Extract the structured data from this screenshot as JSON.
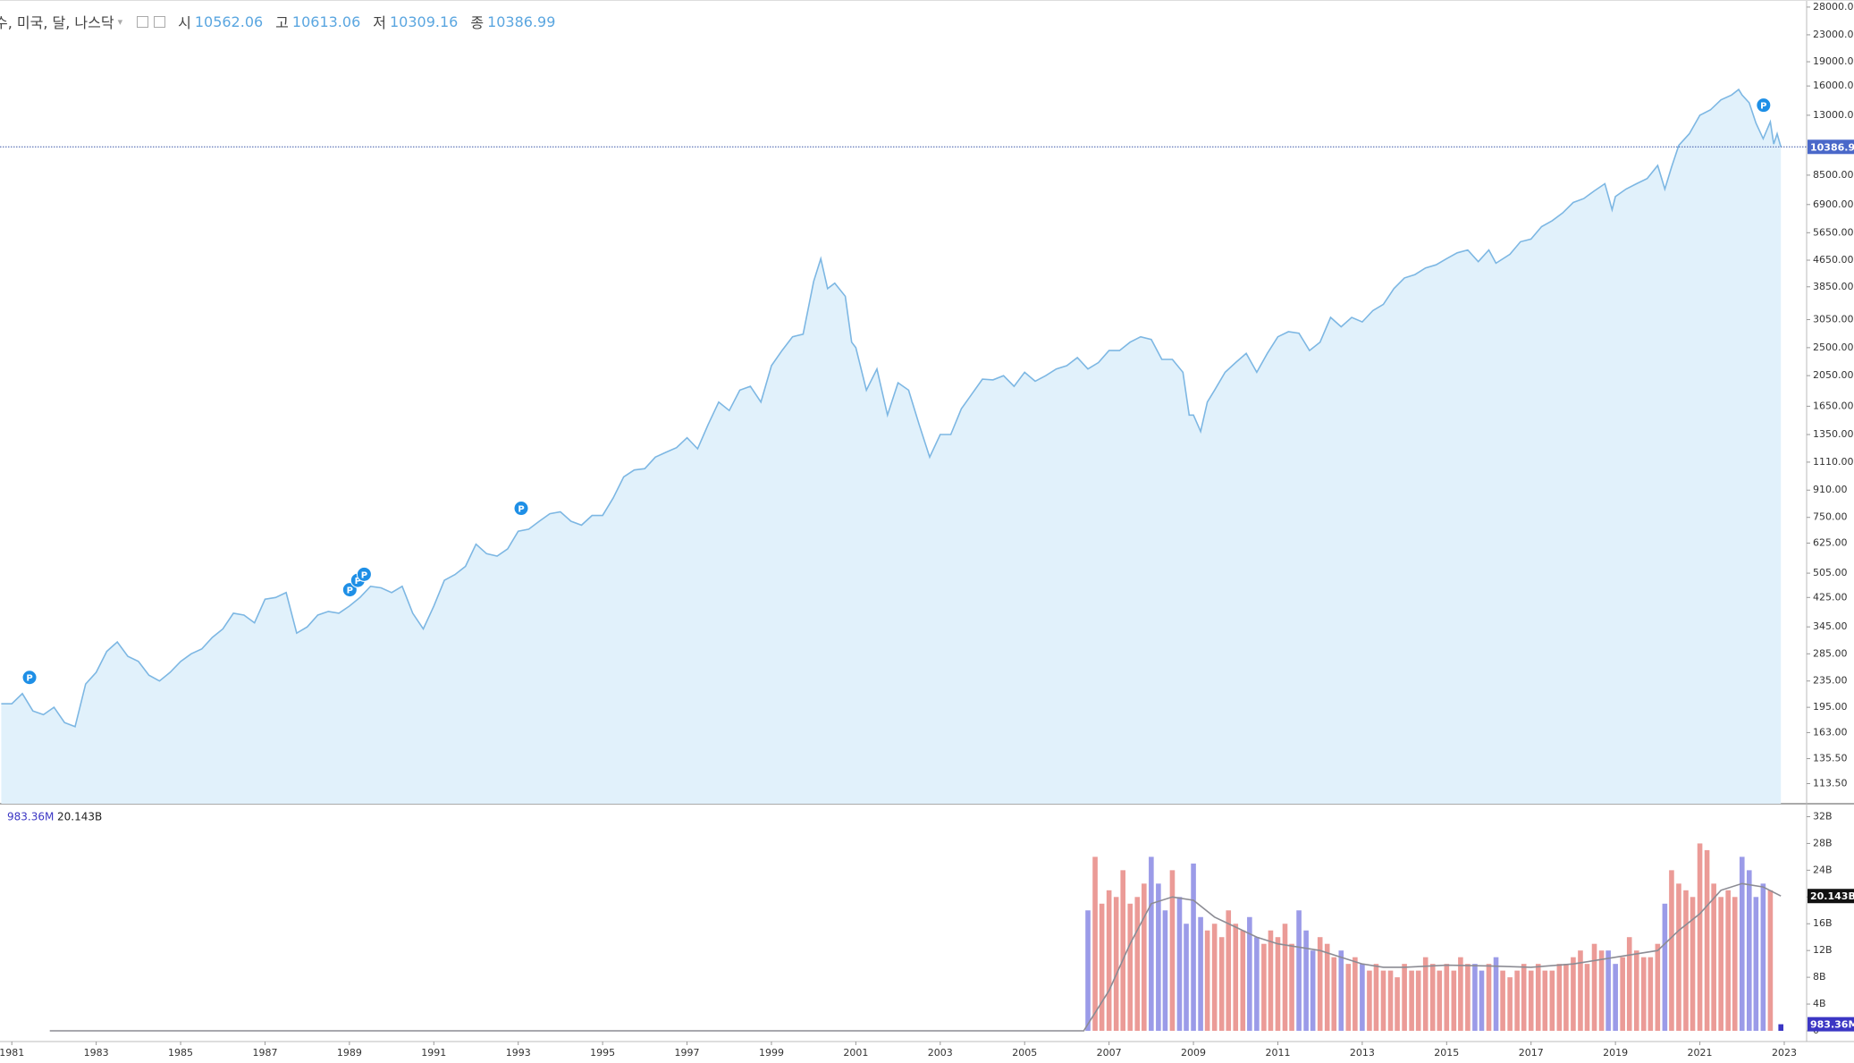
{
  "chart_data": [
    {
      "type": "area",
      "title": "수, 미국, 달, 나스닥",
      "ohlc": [
        {
          "label": "시",
          "value": 10562.06
        },
        {
          "label": "고",
          "value": 10613.06
        },
        {
          "label": "저",
          "value": 10309.16
        },
        {
          "label": "종",
          "value": 10386.99
        }
      ],
      "color": "#7db7e3",
      "fill": "#e1f1fb",
      "last_color": "#4a68c9",
      "log_scale": true,
      "x": [
        1980.75,
        1981,
        1981.25,
        1981.5,
        1981.75,
        1982,
        1982.25,
        1982.5,
        1982.75,
        1983,
        1983.25,
        1983.5,
        1983.75,
        1984,
        1984.25,
        1984.5,
        1984.75,
        1985,
        1985.25,
        1985.5,
        1985.75,
        1986,
        1986.25,
        1986.5,
        1986.75,
        1987,
        1987.25,
        1987.5,
        1987.75,
        1988,
        1988.25,
        1988.5,
        1988.75,
        1989,
        1989.25,
        1989.5,
        1989.75,
        1990,
        1990.25,
        1990.5,
        1990.75,
        1991,
        1991.25,
        1991.5,
        1991.75,
        1992,
        1992.25,
        1992.5,
        1992.75,
        1993,
        1993.25,
        1993.5,
        1993.75,
        1994,
        1994.25,
        1994.5,
        1994.75,
        1995,
        1995.25,
        1995.5,
        1995.75,
        1996,
        1996.25,
        1996.5,
        1996.75,
        1997,
        1997.25,
        1997.5,
        1997.75,
        1998,
        1998.25,
        1998.5,
        1998.75,
        1999,
        1999.25,
        1999.5,
        1999.75,
        2000,
        2000.17,
        2000.33,
        2000.5,
        2000.75,
        2000.9,
        2001,
        2001.25,
        2001.5,
        2001.75,
        2002,
        2002.25,
        2002.5,
        2002.75,
        2003,
        2003.25,
        2003.5,
        2003.75,
        2004,
        2004.25,
        2004.5,
        2004.75,
        2005,
        2005.25,
        2005.5,
        2005.75,
        2006,
        2006.25,
        2006.5,
        2006.75,
        2007,
        2007.25,
        2007.5,
        2007.75,
        2008,
        2008.25,
        2008.5,
        2008.75,
        2008.9,
        2009,
        2009.17,
        2009.33,
        2009.5,
        2009.75,
        2010,
        2010.25,
        2010.5,
        2010.75,
        2011,
        2011.25,
        2011.5,
        2011.75,
        2012,
        2012.25,
        2012.5,
        2012.75,
        2013,
        2013.25,
        2013.5,
        2013.75,
        2014,
        2014.25,
        2014.5,
        2014.75,
        2015,
        2015.25,
        2015.5,
        2015.75,
        2016,
        2016.17,
        2016.5,
        2016.75,
        2017,
        2017.25,
        2017.5,
        2017.75,
        2018,
        2018.25,
        2018.5,
        2018.75,
        2018.92,
        2019,
        2019.25,
        2019.5,
        2019.75,
        2020,
        2020.17,
        2020.33,
        2020.5,
        2020.75,
        2021,
        2021.25,
        2021.5,
        2021.75,
        2021.92,
        2022,
        2022.17,
        2022.33,
        2022.5,
        2022.67,
        2022.75,
        2022.83,
        2022.92
      ],
      "values": [
        200,
        200,
        215,
        190,
        185,
        195,
        175,
        170,
        230,
        250,
        290,
        310,
        280,
        270,
        245,
        235,
        250,
        270,
        285,
        295,
        320,
        340,
        380,
        375,
        355,
        420,
        425,
        440,
        330,
        345,
        375,
        385,
        380,
        400,
        425,
        460,
        455,
        440,
        460,
        380,
        340,
        400,
        480,
        500,
        530,
        620,
        580,
        570,
        600,
        680,
        690,
        730,
        770,
        780,
        730,
        710,
        760,
        760,
        860,
        1000,
        1050,
        1060,
        1150,
        1190,
        1230,
        1320,
        1220,
        1450,
        1700,
        1600,
        1850,
        1900,
        1700,
        2200,
        2450,
        2700,
        2750,
        4000,
        4700,
        3800,
        3950,
        3600,
        2600,
        2500,
        1850,
        2150,
        1550,
        1950,
        1850,
        1450,
        1150,
        1350,
        1350,
        1620,
        1800,
        2000,
        1990,
        2050,
        1900,
        2100,
        1970,
        2050,
        2150,
        2200,
        2330,
        2150,
        2250,
        2450,
        2450,
        2600,
        2700,
        2650,
        2300,
        2300,
        2100,
        1550,
        1550,
        1380,
        1700,
        1850,
        2100,
        2250,
        2400,
        2100,
        2400,
        2700,
        2800,
        2770,
        2450,
        2600,
        3100,
        2900,
        3100,
        3000,
        3250,
        3400,
        3800,
        4100,
        4200,
        4400,
        4500,
        4700,
        4900,
        5000,
        4600,
        5000,
        4550,
        4850,
        5300,
        5400,
        5900,
        6150,
        6500,
        7000,
        7200,
        7600,
        8000,
        6650,
        7300,
        7700,
        8000,
        8300,
        9100,
        7700,
        9000,
        10500,
        11400,
        13000,
        13500,
        14500,
        15000,
        15600,
        15000,
        14200,
        12300,
        11000,
        12400,
        10600,
        11400,
        10386.99
      ],
      "annotations": [
        {
          "x": 1981.42,
          "y": 241,
          "label": "P"
        },
        {
          "x": 1989.01,
          "y": 449,
          "label": "P"
        },
        {
          "x": 1989.2,
          "y": 480,
          "label": "P"
        },
        {
          "x": 1989.35,
          "y": 501,
          "label": "P"
        },
        {
          "x": 1993.07,
          "y": 800,
          "label": "P"
        },
        {
          "x": 2022.51,
          "y": 13960,
          "label": "P"
        }
      ],
      "annotation_color": "#1e8fe6",
      "xlim": [
        1980.72,
        2023.53
      ],
      "xticks": [
        1981,
        1983,
        1985,
        1987,
        1989,
        1991,
        1993,
        1995,
        1997,
        1999,
        2001,
        2003,
        2005,
        2007,
        2009,
        2011,
        2013,
        2015,
        2017,
        2019,
        2021,
        2023
      ],
      "ylim": [
        98.4,
        29440
      ],
      "yticks": [
        {
          "value": 113.5,
          "label": "113.50"
        },
        {
          "value": 135.5,
          "label": "135.50"
        },
        {
          "value": 163,
          "label": "163.00"
        },
        {
          "value": 195,
          "label": "195.00"
        },
        {
          "value": 235,
          "label": "235.00"
        },
        {
          "value": 285,
          "label": "285.00"
        },
        {
          "value": 345,
          "label": "345.00"
        },
        {
          "value": 425,
          "label": "425.00"
        },
        {
          "value": 505,
          "label": "505.00"
        },
        {
          "value": 625,
          "label": "625.00"
        },
        {
          "value": 750,
          "label": "750.00"
        },
        {
          "value": 910,
          "label": "910.00"
        },
        {
          "value": 1110,
          "label": "1110.00"
        },
        {
          "value": 1350,
          "label": "1350.00"
        },
        {
          "value": 1650,
          "label": "1650.00"
        },
        {
          "value": 2050,
          "label": "2050.00"
        },
        {
          "value": 2500,
          "label": "2500.00"
        },
        {
          "value": 3050,
          "label": "3050.00"
        },
        {
          "value": 3850,
          "label": "3850.00"
        },
        {
          "value": 4650,
          "label": "4650.00"
        },
        {
          "value": 5650,
          "label": "5650.00"
        },
        {
          "value": 6900,
          "label": "6900.00"
        },
        {
          "value": 8500,
          "label": "8500.00"
        },
        {
          "value": 13000,
          "label": "13000.00"
        },
        {
          "value": 16000,
          "label": "16000.00"
        },
        {
          "value": 19000,
          "label": "19000.00"
        },
        {
          "value": 23000,
          "label": "23000.00"
        },
        {
          "value": 28000,
          "label": "28000.00"
        }
      ]
    },
    {
      "type": "bar",
      "up_color": "#eb9b97",
      "down_color": "#9b9be8",
      "last_color": "#3b36c4",
      "x": [
        2006.5,
        2006.67,
        2006.83,
        2007,
        2007.17,
        2007.33,
        2007.5,
        2007.67,
        2007.83,
        2008,
        2008.17,
        2008.33,
        2008.5,
        2008.67,
        2008.83,
        2009,
        2009.17,
        2009.33,
        2009.5,
        2009.67,
        2009.83,
        2010,
        2010.17,
        2010.33,
        2010.5,
        2010.67,
        2010.83,
        2011,
        2011.17,
        2011.33,
        2011.5,
        2011.67,
        2011.83,
        2012,
        2012.17,
        2012.33,
        2012.5,
        2012.67,
        2012.83,
        2013,
        2013.17,
        2013.33,
        2013.5,
        2013.67,
        2013.83,
        2014,
        2014.17,
        2014.33,
        2014.5,
        2014.67,
        2014.83,
        2015,
        2015.17,
        2015.33,
        2015.5,
        2015.67,
        2015.83,
        2016,
        2016.17,
        2016.33,
        2016.5,
        2016.67,
        2016.83,
        2017,
        2017.17,
        2017.33,
        2017.5,
        2017.67,
        2017.83,
        2018,
        2018.17,
        2018.33,
        2018.5,
        2018.67,
        2018.83,
        2019,
        2019.17,
        2019.33,
        2019.5,
        2019.67,
        2019.83,
        2020,
        2020.17,
        2020.33,
        2020.5,
        2020.67,
        2020.83,
        2021,
        2021.17,
        2021.33,
        2021.5,
        2021.67,
        2021.83,
        2022,
        2022.17,
        2022.33,
        2022.5,
        2022.67,
        2022.92
      ],
      "values": [
        18,
        26,
        19,
        21,
        20,
        24,
        19,
        20,
        22,
        26,
        22,
        18,
        24,
        20,
        16,
        25,
        17,
        15,
        16,
        14,
        18,
        16,
        15,
        17,
        14,
        13,
        15,
        14,
        16,
        13,
        18,
        15,
        12,
        14,
        13,
        11,
        12,
        10,
        11,
        10,
        9,
        10,
        9,
        9,
        8,
        10,
        9,
        9,
        11,
        10,
        9,
        10,
        9,
        11,
        10,
        10,
        9,
        10,
        11,
        9,
        8,
        9,
        10,
        9,
        10,
        9,
        9,
        10,
        10,
        11,
        12,
        10,
        13,
        12,
        12,
        10,
        11,
        14,
        12,
        11,
        11,
        13,
        19,
        24,
        22,
        21,
        20,
        28,
        27,
        22,
        20,
        21,
        20,
        26,
        24,
        20,
        22,
        21,
        0.98336
      ],
      "last_label": "983.36M",
      "average": {
        "color": "#8c8c94",
        "last_color": "#111111",
        "last_label": "20.143B",
        "x": [
          1981.9,
          2006.4,
          2007,
          2007.5,
          2008,
          2008.5,
          2009,
          2009.5,
          2010,
          2010.5,
          2011,
          2011.5,
          2012,
          2012.5,
          2013,
          2013.5,
          2014,
          2015,
          2016,
          2017,
          2018,
          2019,
          2019.5,
          2020,
          2020.5,
          2021,
          2021.5,
          2022,
          2022.5,
          2022.92
        ],
        "values": [
          0,
          0,
          6,
          13,
          19,
          20,
          19.5,
          17,
          15.5,
          14,
          13,
          12.5,
          12,
          11,
          10,
          9.5,
          9.5,
          9.8,
          9.7,
          9.5,
          10,
          11,
          11.5,
          12,
          15,
          17.5,
          21,
          22,
          21.5,
          20.143
        ]
      },
      "ylim": [
        0,
        33
      ],
      "yticks": [
        0,
        {
          "value": 4,
          "label": "4B"
        },
        {
          "value": 8,
          "label": "8B"
        },
        {
          "value": 12,
          "label": "12B"
        },
        {
          "value": 16,
          "label": "16B"
        },
        {
          "value": 20,
          "label": "20B"
        },
        {
          "value": 24,
          "label": "24B"
        },
        {
          "value": 28,
          "label": "28B"
        },
        {
          "value": 32,
          "label": "32B"
        }
      ]
    }
  ]
}
